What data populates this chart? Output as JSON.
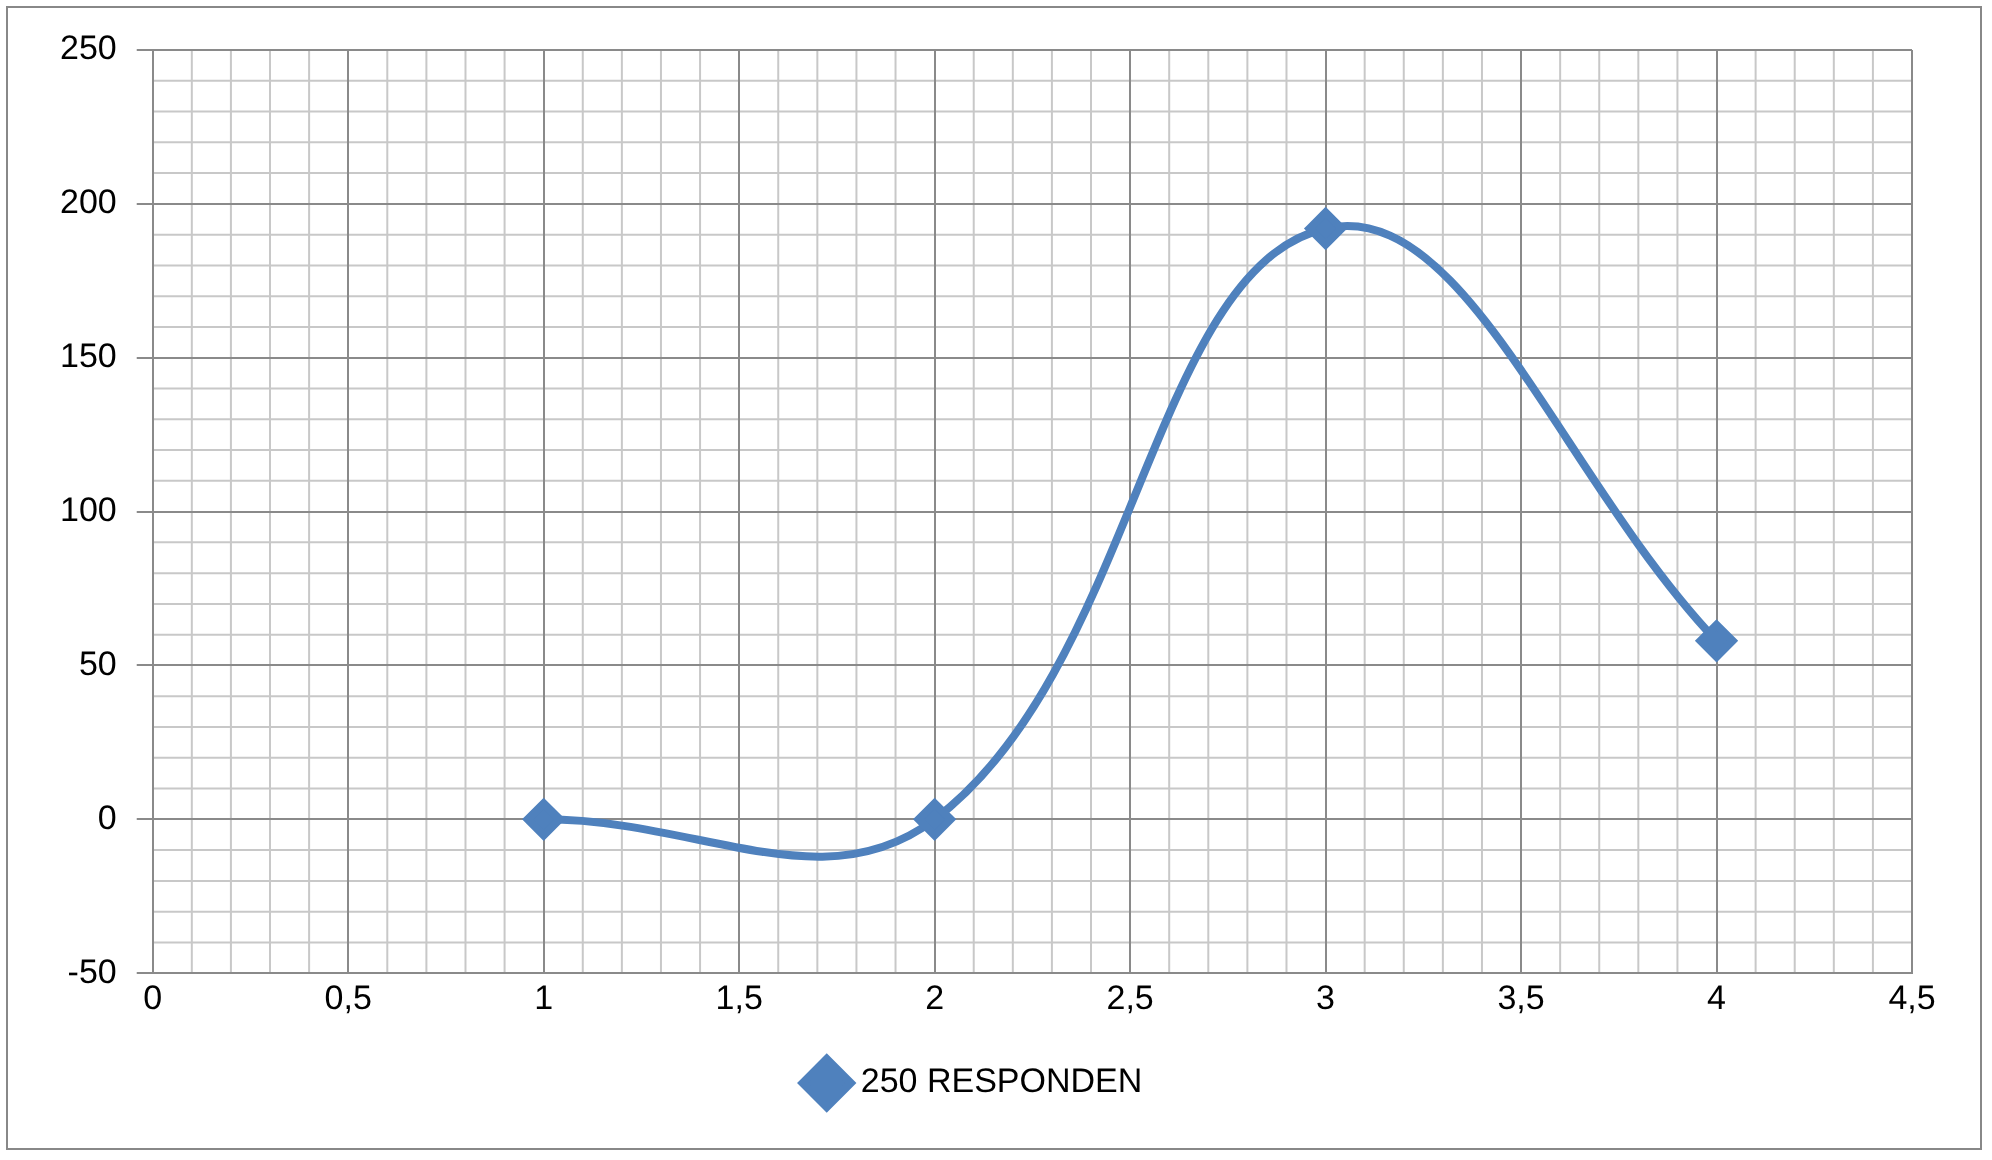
{
  "chart_data": {
    "type": "line",
    "x": [
      1,
      2,
      3,
      4
    ],
    "series": [
      {
        "name": "250 RESPONDEN",
        "color": "#4f81bd",
        "values": [
          0,
          0,
          192,
          58
        ]
      }
    ],
    "xlim": [
      0,
      4.5
    ],
    "xticks": [
      0,
      {
        "value": 0.5,
        "label": "0,5"
      },
      1,
      {
        "value": 1.5,
        "label": "1,5"
      },
      2,
      {
        "value": 2.5,
        "label": "2,5"
      },
      3,
      {
        "value": 3.5,
        "label": "3,5"
      },
      4,
      {
        "value": 4.5,
        "label": "4,5"
      }
    ],
    "ylim": [
      -50,
      250
    ],
    "yticks": [
      -50,
      0,
      50,
      100,
      150,
      200,
      250
    ],
    "grid": true,
    "legend": "bottom",
    "marker": "diamond",
    "line_style": "solid"
  }
}
